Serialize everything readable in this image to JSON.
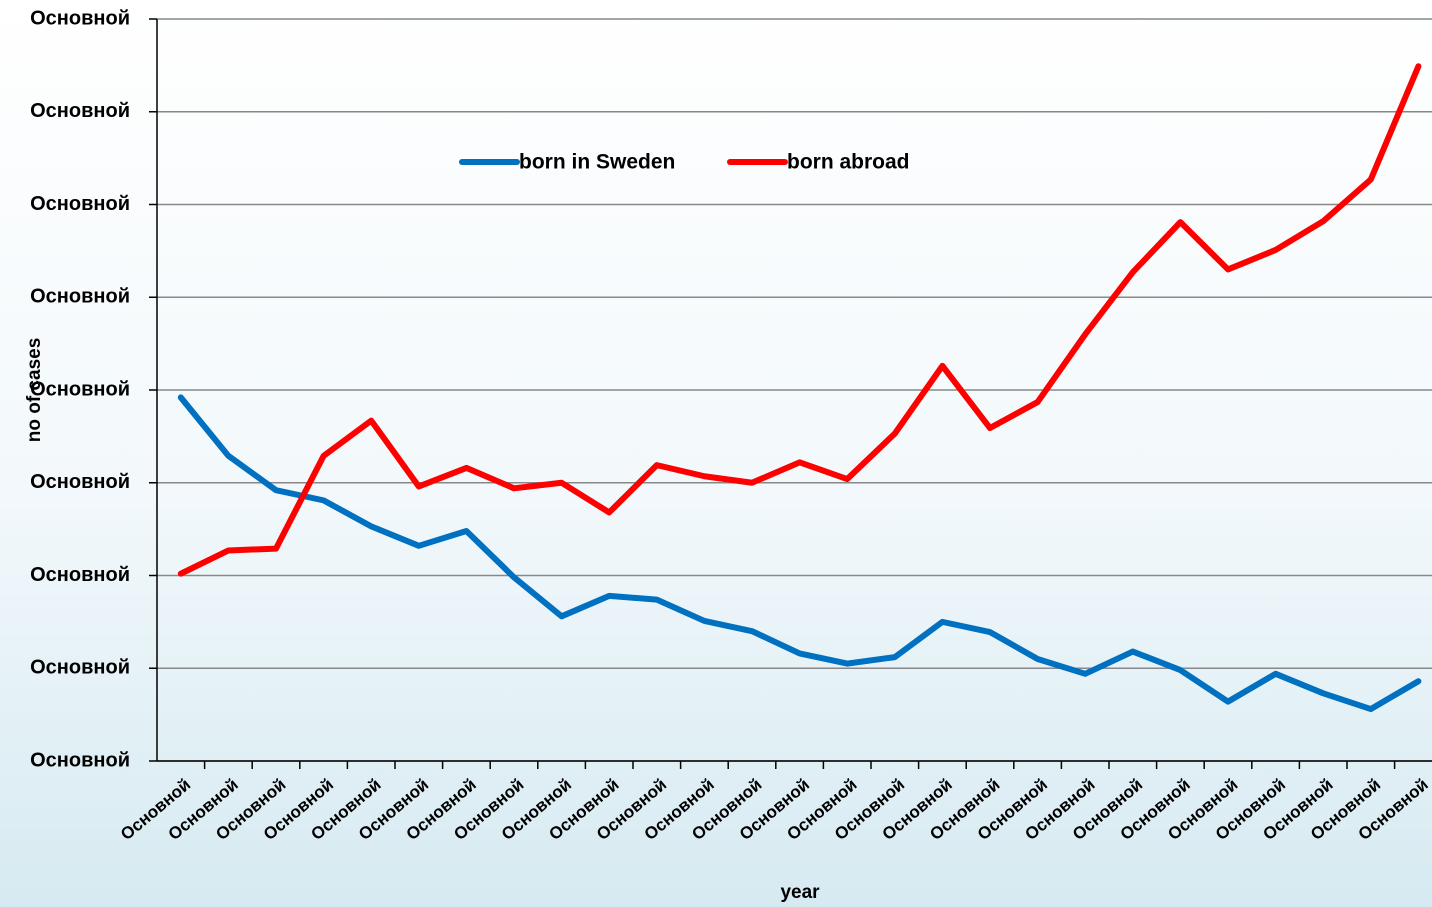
{
  "chart_data": {
    "type": "line",
    "x_label": "year",
    "y_label": "no of cases",
    "categories": [
      "Основной",
      "Основной",
      "Основной",
      "Основной",
      "Основной",
      "Основной",
      "Основной",
      "Основной",
      "Основной",
      "Основной",
      "Основной",
      "Основной",
      "Основной",
      "Основной",
      "Основной",
      "Основной",
      "Основной",
      "Основной",
      "Основной",
      "Основной",
      "Основной",
      "Основной",
      "Основной",
      "Основной",
      "Основной",
      "Основной",
      "Основной"
    ],
    "series": [
      {
        "name": "born in Sweden",
        "color": "#0070c0",
        "values": [
          39.2,
          32.9,
          29.2,
          28.1,
          25.3,
          23.2,
          24.8,
          19.8,
          15.6,
          17.8,
          17.4,
          15.1,
          14.0,
          11.6,
          10.5,
          11.2,
          15.0,
          13.9,
          11.0,
          9.4,
          11.8,
          9.8,
          6.4,
          9.4,
          7.3,
          5.6,
          8.6
        ]
      },
      {
        "name": "born abroad",
        "color": "#ff0000",
        "values": [
          20.2,
          22.7,
          22.9,
          32.9,
          36.7,
          29.6,
          31.6,
          29.4,
          30.0,
          26.8,
          31.9,
          30.7,
          30.0,
          32.2,
          30.4,
          35.3,
          42.6,
          35.9,
          38.7,
          46.0,
          52.7,
          58.1,
          53.0,
          55.1,
          58.2,
          62.7,
          74.9
        ]
      }
    ],
    "ylim": [
      0,
      80
    ],
    "yticks": [
      {
        "value": 0,
        "label": "Основной"
      },
      {
        "value": 10,
        "label": "Основной"
      },
      {
        "value": 20,
        "label": "Основной"
      },
      {
        "value": 30,
        "label": "Основной"
      },
      {
        "value": 40,
        "label": "Основной"
      },
      {
        "value": 50,
        "label": "Основной"
      },
      {
        "value": 60,
        "label": "Основной"
      },
      {
        "value": 70,
        "label": "Основной"
      },
      {
        "value": 80,
        "label": "Основной"
      }
    ],
    "grid": true
  }
}
